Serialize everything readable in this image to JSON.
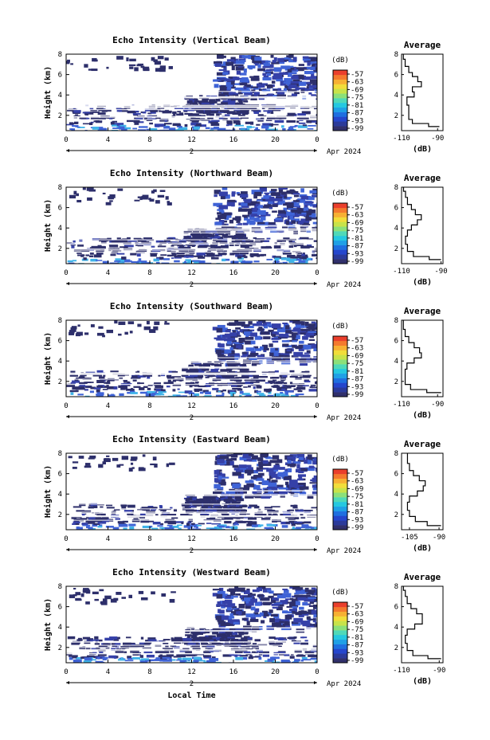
{
  "colors": {
    "colorbar": [
      "#31306b",
      "#2b3a9a",
      "#2546cc",
      "#1f6fe0",
      "#1fa0e6",
      "#25c8e0",
      "#4fd9b8",
      "#8be07a",
      "#c8e34a",
      "#f1dd3a",
      "#f7b033",
      "#f47a2e",
      "#ea3f2c"
    ],
    "echo_dark": "#2d2f6b",
    "echo_mid": "#3540a8",
    "echo_blue": "#3f63d6",
    "echo_cyan": "#3fb3e8"
  },
  "shared": {
    "x_ticks": [
      "0",
      "4",
      "8",
      "12",
      "16",
      "20",
      "0"
    ],
    "y_ticks": [
      "2",
      "4",
      "6",
      "8"
    ],
    "date_day": "2",
    "date_label": "Apr 2024",
    "colorbar_unit": "(dB)",
    "colorbar_ticks": [
      "-57",
      "-63",
      "-69",
      "-75",
      "-81",
      "-87",
      "-93",
      "-99"
    ],
    "ylabel": "Height (km)",
    "xlabel": "Local Time",
    "avg_title": "Average",
    "avg_xlabel": "(dB)"
  },
  "chart_data": [
    {
      "type": "heatmap",
      "title": "Echo Intensity (Vertical Beam)",
      "ylabel": "Height (km)",
      "x_range_hours": [
        0,
        24
      ],
      "y_range_km": [
        0.5,
        8
      ],
      "color_range_db": [
        -99,
        -57
      ],
      "average": {
        "title": "Average",
        "xticks": [
          "-110",
          "-90"
        ],
        "xlim": [
          -110,
          -87
        ],
        "xlabel": "(dB)",
        "profile": [
          [
            -89,
            0.9
          ],
          [
            -95,
            1.2
          ],
          [
            -104,
            1.6
          ],
          [
            -106,
            2.2
          ],
          [
            -106,
            3.0
          ],
          [
            -107,
            3.8
          ],
          [
            -103,
            4.3
          ],
          [
            -104,
            4.8
          ],
          [
            -99,
            5.3
          ],
          [
            -101,
            5.8
          ],
          [
            -104,
            6.2
          ],
          [
            -106,
            6.8
          ],
          [
            -108,
            7.5
          ],
          [
            -109,
            8
          ]
        ]
      }
    },
    {
      "type": "heatmap",
      "title": "Echo Intensity (Northward Beam)",
      "ylabel": "Height (km)",
      "x_range_hours": [
        0,
        24
      ],
      "y_range_km": [
        0.5,
        8
      ],
      "color_range_db": [
        -99,
        -57
      ],
      "average": {
        "title": "Average",
        "xticks": [
          "-110",
          "-90"
        ],
        "xlim": [
          -110,
          -89
        ],
        "xlabel": "(dB)",
        "profile": [
          [
            -90,
            0.9
          ],
          [
            -96,
            1.2
          ],
          [
            -104,
            1.7
          ],
          [
            -107,
            2.4
          ],
          [
            -108,
            3.2
          ],
          [
            -107,
            3.8
          ],
          [
            -105,
            4.3
          ],
          [
            -102,
            4.8
          ],
          [
            -100,
            5.3
          ],
          [
            -103,
            5.8
          ],
          [
            -105,
            6.3
          ],
          [
            -107,
            7
          ],
          [
            -108,
            7.6
          ],
          [
            -109,
            8
          ]
        ]
      }
    },
    {
      "type": "heatmap",
      "title": "Echo Intensity (Southward Beam)",
      "ylabel": "Height (km)",
      "x_range_hours": [
        0,
        24
      ],
      "y_range_km": [
        0.5,
        8
      ],
      "color_range_db": [
        -99,
        -57
      ],
      "average": {
        "title": "Average",
        "xticks": [
          "-110",
          "-90"
        ],
        "xlim": [
          -110,
          -87
        ],
        "xlabel": "(dB)",
        "profile": [
          [
            -88,
            0.9
          ],
          [
            -96,
            1.2
          ],
          [
            -105,
            1.7
          ],
          [
            -108,
            2.4
          ],
          [
            -108,
            3.2
          ],
          [
            -107,
            3.8
          ],
          [
            -103,
            4.3
          ],
          [
            -99,
            4.8
          ],
          [
            -100,
            5.3
          ],
          [
            -103,
            5.8
          ],
          [
            -106,
            6.4
          ],
          [
            -108,
            7.1
          ],
          [
            -109,
            7.6
          ],
          [
            -109,
            8
          ]
        ]
      }
    },
    {
      "type": "heatmap",
      "title": "Echo Intensity (Eastward Beam)",
      "ylabel": "Height (km)",
      "x_range_hours": [
        0,
        24
      ],
      "y_range_km": [
        0.5,
        8
      ],
      "color_range_db": [
        -99,
        -57
      ],
      "average": {
        "title": "Average",
        "xticks": [
          "-105",
          "-90"
        ],
        "xlim": [
          -109,
          -88
        ],
        "xlabel": "(dB)",
        "profile": [
          [
            -89,
            0.9
          ],
          [
            -96,
            1.3
          ],
          [
            -102,
            1.8
          ],
          [
            -105,
            2.4
          ],
          [
            -106,
            3.2
          ],
          [
            -105,
            3.8
          ],
          [
            -101,
            4.3
          ],
          [
            -98,
            4.8
          ],
          [
            -97,
            5.3
          ],
          [
            -100,
            5.8
          ],
          [
            -103,
            6.3
          ],
          [
            -105,
            7
          ],
          [
            -106,
            7.6
          ],
          [
            -106,
            8
          ]
        ]
      }
    },
    {
      "type": "heatmap",
      "title": "Echo Intensity (Westward Beam)",
      "ylabel": "Height (km)",
      "x_range_hours": [
        0,
        24
      ],
      "y_range_km": [
        0.5,
        8
      ],
      "color_range_db": [
        -99,
        -57
      ],
      "average": {
        "title": "Average",
        "xticks": [
          "-110",
          "-90"
        ],
        "xlim": [
          -110,
          -88
        ],
        "xlabel": "(dB)",
        "profile": [
          [
            -89,
            0.9
          ],
          [
            -96,
            1.2
          ],
          [
            -104,
            1.7
          ],
          [
            -107,
            2.4
          ],
          [
            -108,
            3.2
          ],
          [
            -107,
            3.8
          ],
          [
            -103,
            4.3
          ],
          [
            -99,
            4.8
          ],
          [
            -99,
            5.3
          ],
          [
            -102,
            5.8
          ],
          [
            -105,
            6.3
          ],
          [
            -107,
            7
          ],
          [
            -108,
            7.6
          ],
          [
            -109,
            8
          ]
        ]
      }
    }
  ]
}
